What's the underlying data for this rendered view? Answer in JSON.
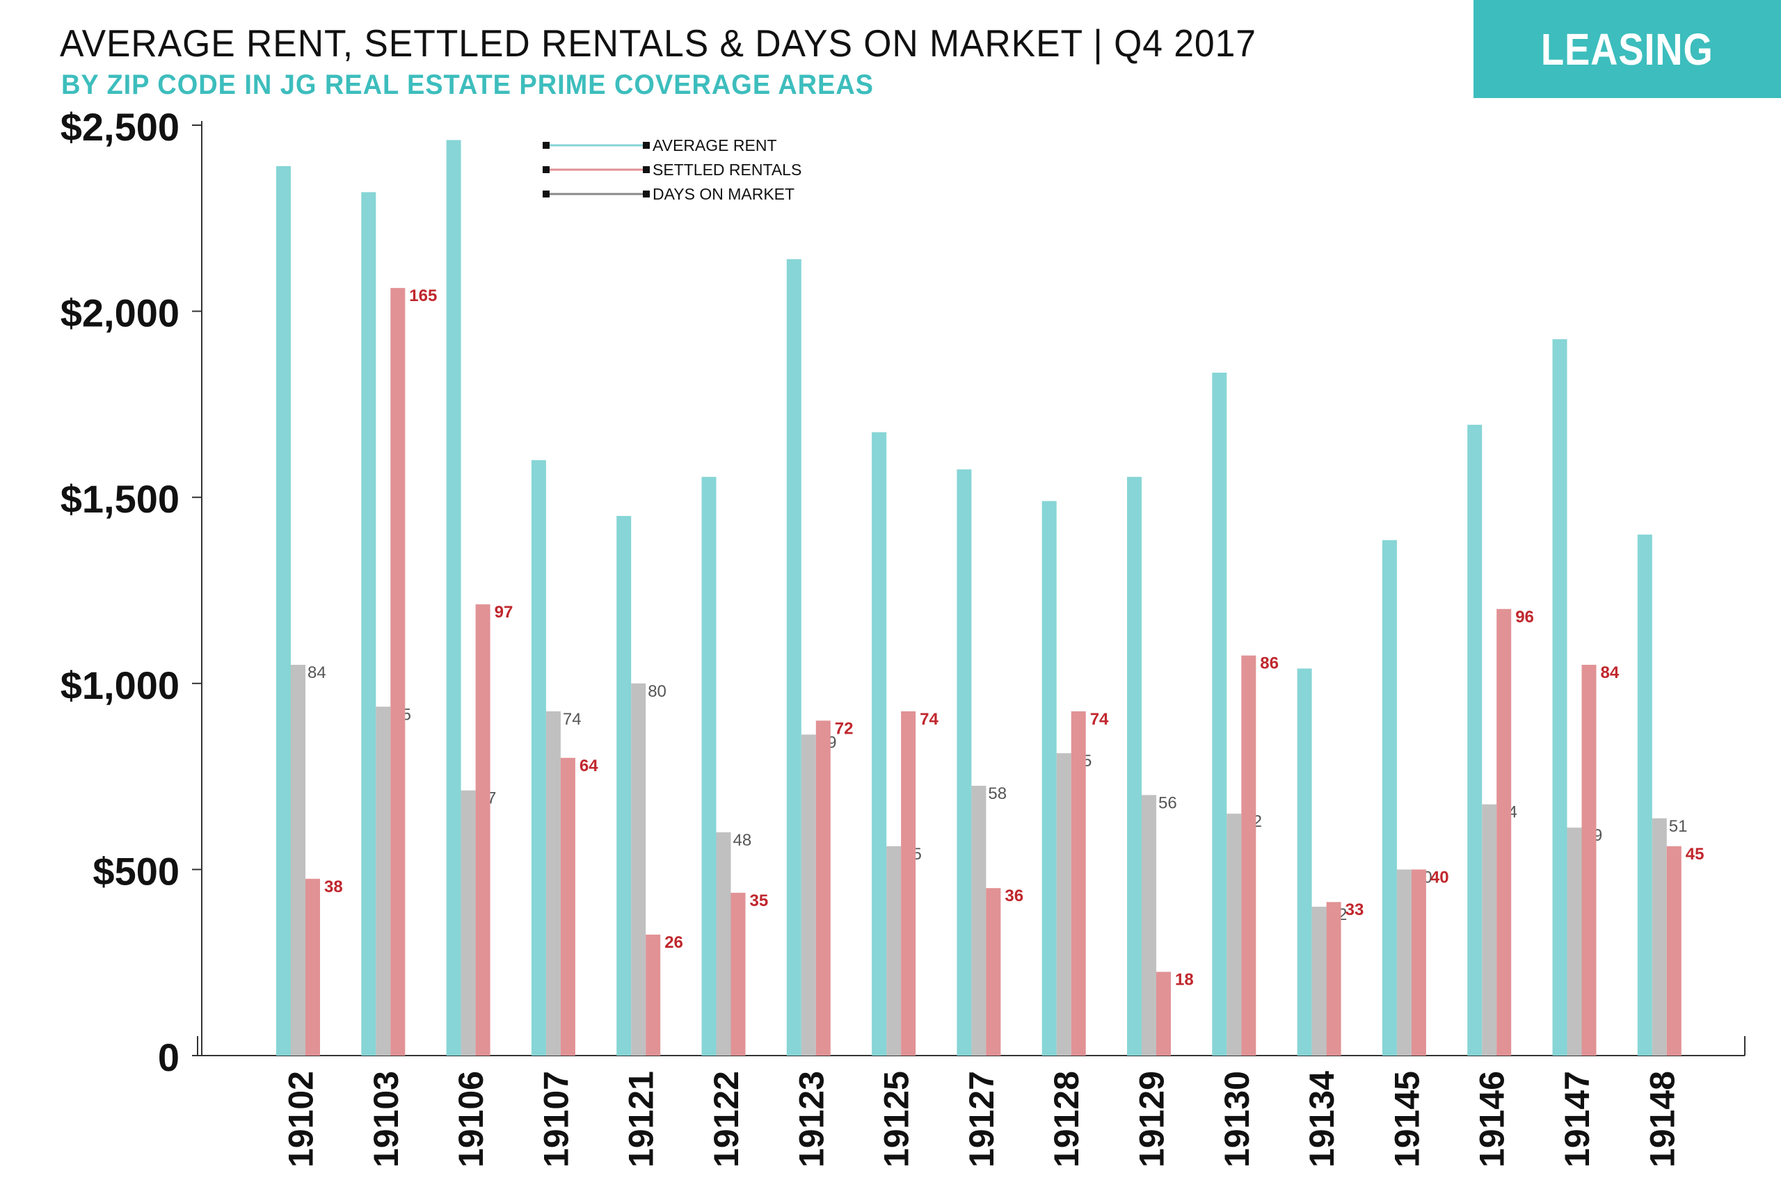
{
  "header": {
    "title": "AVERAGE RENT, SETTLED RENTALS & DAYS ON MARKET | Q4 2017",
    "subtitle": "BY ZIP CODE IN JG REAL ESTATE PRIME COVERAGE AREAS",
    "badge": "LEASING"
  },
  "colors": {
    "teal": "#87d5d6",
    "red": "#e19295",
    "gray": "#c0c0c0",
    "badge": "#3dbdbd",
    "subtitle": "#3dbdbd",
    "red_label": "#c0272d",
    "gray_label": "#555555"
  },
  "chart_data": {
    "type": "bar",
    "categories": [
      "19102",
      "19103",
      "19106",
      "19107",
      "19121",
      "19122",
      "19123",
      "19125",
      "19127",
      "19128",
      "19129",
      "19130",
      "19134",
      "19145",
      "19146",
      "19147",
      "19148"
    ],
    "y_ticks": [
      "$2,500",
      "$2,000",
      "$1,500",
      "$1,000",
      "$500",
      "0"
    ],
    "ylim": [
      0,
      2500
    ],
    "series": [
      {
        "name": "AVERAGE RENT",
        "color": "#87d5d6",
        "values": [
          2390,
          2320,
          2460,
          1600,
          1450,
          1555,
          2140,
          1675,
          1575,
          1490,
          1555,
          1835,
          1040,
          1385,
          1695,
          1925,
          1400
        ],
        "labels": []
      },
      {
        "name": "DAYS ON MARKET",
        "color": "#c0c0c0",
        "values": [
          84,
          75,
          57,
          74,
          80,
          48,
          69,
          45,
          58,
          65,
          56,
          52,
          32,
          40,
          54,
          49,
          51
        ],
        "labels": [
          "84",
          "75",
          "57",
          "74",
          "80",
          "48",
          "69",
          "45",
          "58",
          "65",
          "56",
          "52",
          "32",
          "40",
          "54",
          "49",
          "51"
        ]
      },
      {
        "name": "SETTLED RENTALS",
        "color": "#e19295",
        "values": [
          38,
          165,
          97,
          64,
          26,
          35,
          72,
          74,
          36,
          74,
          18,
          86,
          33,
          40,
          96,
          84,
          45
        ],
        "labels": [
          "38",
          "165",
          "97",
          "64",
          "26",
          "35",
          "72",
          "74",
          "36",
          "74",
          "18",
          "86",
          "33",
          "40",
          "96",
          "84",
          "45"
        ]
      }
    ],
    "legend": [
      "AVERAGE RENT",
      "SETTLED RENTALS",
      "DAYS ON MARKET"
    ],
    "legend_position": "top-center",
    "grid": false
  }
}
